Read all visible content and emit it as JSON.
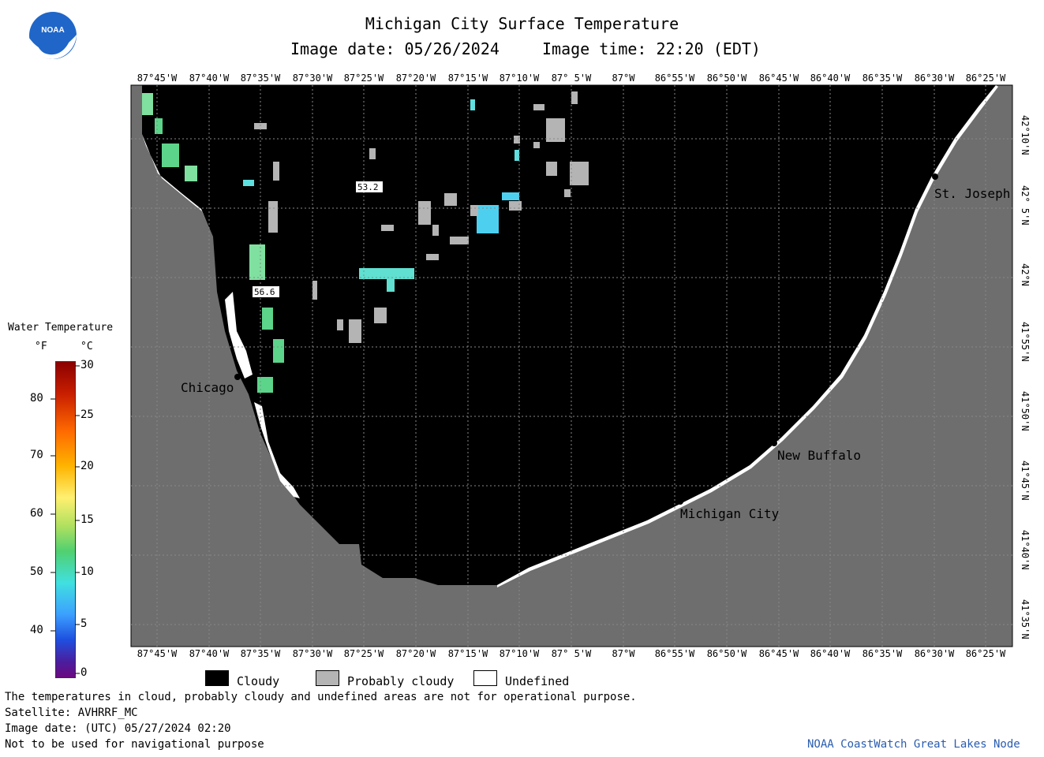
{
  "header": {
    "title": "Michigan City Surface Temperature",
    "date_line": "Image date: 05/26/2024",
    "time_line": "Image time: 22:20 (EDT)"
  },
  "logo": {
    "text": "NOAA",
    "color": "#1f66c8"
  },
  "map": {
    "lon_ticks": [
      "87°45'W",
      "87°40'W",
      "87°35'W",
      "87°30'W",
      "87°25'W",
      "87°20'W",
      "87°15'W",
      "87°10'W",
      "87° 5'W",
      "87°W",
      "86°55'W",
      "86°50'W",
      "86°45'W",
      "86°40'W",
      "86°35'W",
      "86°30'W",
      "86°25'W"
    ],
    "lat_ticks": [
      "42°10'N",
      "42° 5'N",
      "42°N",
      "41°55'N",
      "41°50'N",
      "41°45'N",
      "41°40'N",
      "41°35'N"
    ],
    "cities": [
      {
        "name": "Chicago"
      },
      {
        "name": "St. Joseph"
      },
      {
        "name": "New Buffalo"
      },
      {
        "name": "Michigan City"
      }
    ],
    "temp_labels": [
      "53.2",
      "56.6"
    ],
    "colors": {
      "cloudy": "#000000",
      "land": "#6e6e6e",
      "probably_cloudy": "#b4b4b4",
      "undefined": "#ffffff"
    }
  },
  "colorbar": {
    "title": "Water Temperature",
    "unit_f": "°F",
    "unit_c": "°C",
    "f_ticks": [
      "80",
      "70",
      "60",
      "50",
      "40"
    ],
    "c_ticks": [
      "30",
      "25",
      "20",
      "15",
      "10",
      "5",
      "0"
    ]
  },
  "legend": {
    "cloudy": "Cloudy",
    "probably_cloudy": "Probably cloudy",
    "undefined": "Undefined"
  },
  "footer": {
    "line1": "The temperatures in cloud, probably cloudy and undefined areas are not for operational purpose.",
    "line2": "Satellite: AVHRRF_MC",
    "line3": "Image date: (UTC) 05/27/2024  02:20",
    "line4": "Not to be used for navigational purpose",
    "credit": "NOAA CoastWatch Great Lakes Node",
    "credit_color": "#2a5db0"
  }
}
